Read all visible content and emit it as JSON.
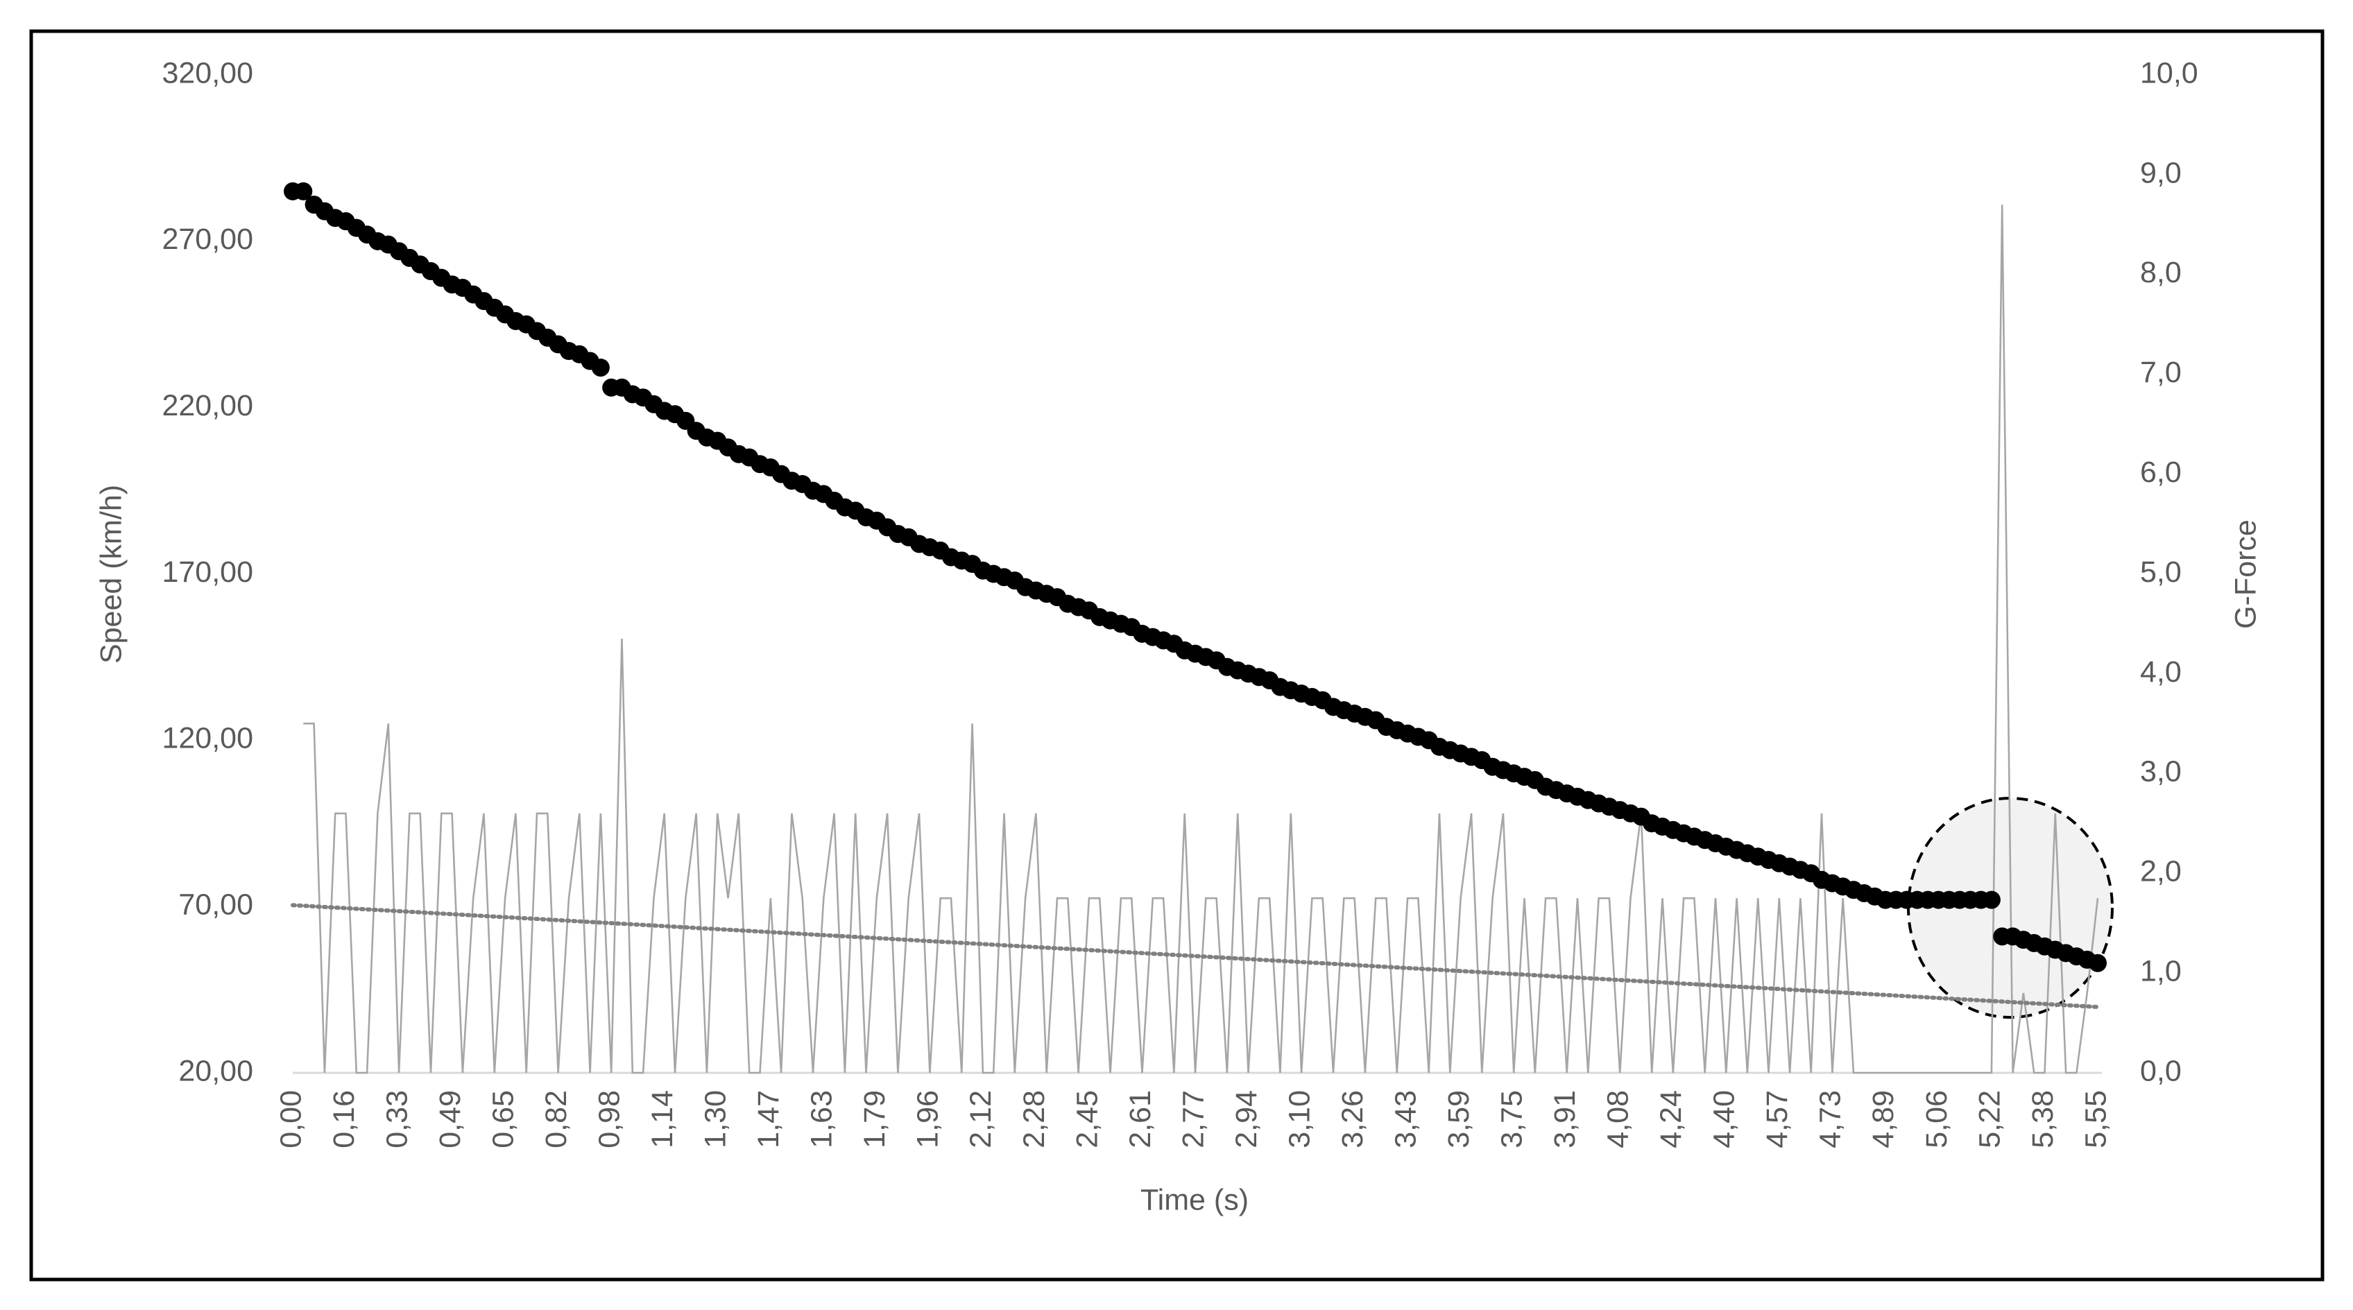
{
  "chart_data": {
    "type": "line",
    "x_label": "Time (s)",
    "y_label": "Speed (km/h)",
    "y2_label": "G-Force",
    "categories": [
      "0,00",
      null,
      null,
      null,
      null,
      "0,16",
      null,
      null,
      null,
      null,
      "0,33",
      null,
      null,
      null,
      null,
      "0,49",
      null,
      null,
      null,
      null,
      "0,65",
      null,
      null,
      null,
      null,
      "0,82",
      null,
      null,
      null,
      null,
      "0,98",
      null,
      null,
      null,
      null,
      "1,14",
      null,
      null,
      null,
      null,
      "1,30",
      null,
      null,
      null,
      null,
      "1,47",
      null,
      null,
      null,
      null,
      "1,63",
      null,
      null,
      null,
      null,
      "1,79",
      null,
      null,
      null,
      null,
      "1,96",
      null,
      null,
      null,
      null,
      "2,12",
      null,
      null,
      null,
      null,
      "2,28",
      null,
      null,
      null,
      null,
      "2,45",
      null,
      null,
      null,
      null,
      "2,61",
      null,
      null,
      null,
      null,
      "2,77",
      null,
      null,
      null,
      null,
      "2,94",
      null,
      null,
      null,
      null,
      "3,10",
      null,
      null,
      null,
      null,
      "3,26",
      null,
      null,
      null,
      null,
      "3,43",
      null,
      null,
      null,
      null,
      "3,59",
      null,
      null,
      null,
      null,
      "3,75",
      null,
      null,
      null,
      null,
      "3,91",
      null,
      null,
      null,
      null,
      "4,08",
      null,
      null,
      null,
      null,
      "4,24",
      null,
      null,
      null,
      null,
      "4,40",
      null,
      null,
      null,
      null,
      "4,57",
      null,
      null,
      null,
      null,
      "4,73",
      null,
      null,
      null,
      null,
      "4,89",
      null,
      null,
      null,
      null,
      "5,06",
      null,
      null,
      null,
      null,
      "5,22",
      null,
      null,
      null,
      null,
      "5,38",
      null,
      null,
      null,
      null,
      "5,55"
    ],
    "series": [
      {
        "color": "#000000",
        "marker": "circle",
        "axis": "y",
        "values": [
          285,
          285,
          281,
          279,
          277,
          276,
          274,
          272,
          270,
          269,
          267,
          265,
          263,
          261,
          259,
          257,
          256,
          254,
          252,
          250,
          248,
          246,
          245,
          243,
          241,
          239,
          237,
          236,
          234,
          232,
          226,
          226,
          224,
          223,
          221,
          219,
          218,
          216,
          213,
          211,
          210,
          208,
          206,
          205,
          203,
          202,
          200,
          198,
          197,
          195,
          194,
          192,
          190,
          189,
          187,
          186,
          184,
          182,
          181,
          179,
          178,
          177,
          175,
          174,
          173,
          171,
          170,
          169,
          168,
          166,
          165,
          164,
          163,
          161,
          160,
          159,
          157,
          156,
          155,
          154,
          152,
          151,
          150,
          149,
          147,
          146,
          145,
          144,
          142,
          141,
          140,
          139,
          138,
          136,
          135,
          134,
          133,
          132,
          130,
          129,
          128,
          127,
          126,
          124,
          123,
          122,
          121,
          120,
          118,
          117,
          116,
          115,
          114,
          112,
          111,
          110,
          109,
          108,
          106,
          105,
          104,
          103,
          102,
          101,
          100,
          99,
          98,
          97,
          95,
          94,
          93,
          92,
          91,
          90,
          89,
          88,
          87,
          86,
          85,
          84,
          83,
          82,
          81,
          80,
          78,
          77,
          76,
          75,
          74,
          73,
          72,
          72,
          72,
          72,
          72,
          72,
          72,
          72,
          72,
          72,
          72,
          61,
          61,
          60,
          59,
          58,
          57,
          56,
          55,
          54,
          53
        ]
      },
      {
        "color": "#a6a6a6",
        "axis": "y2",
        "values": [
          null,
          3.5,
          3.5,
          0,
          2.6,
          2.6,
          0,
          0,
          2.6,
          3.5,
          0,
          2.6,
          2.6,
          0,
          2.6,
          2.6,
          0,
          1.75,
          2.6,
          0,
          1.75,
          2.6,
          0,
          2.6,
          2.6,
          0,
          1.75,
          2.6,
          0,
          2.6,
          0,
          4.35,
          0,
          0,
          1.75,
          2.6,
          0,
          1.75,
          2.6,
          0,
          2.6,
          1.75,
          2.6,
          0,
          0,
          1.75,
          0,
          2.6,
          1.75,
          0,
          1.75,
          2.6,
          0,
          2.6,
          0,
          1.75,
          2.6,
          0,
          1.75,
          2.6,
          0,
          1.75,
          1.75,
          0,
          3.5,
          0,
          0,
          2.6,
          0,
          1.75,
          2.6,
          0,
          1.75,
          1.75,
          0,
          1.75,
          1.75,
          0,
          1.75,
          1.75,
          0,
          1.75,
          1.75,
          0,
          2.6,
          0,
          1.75,
          1.75,
          0,
          2.6,
          0,
          1.75,
          1.75,
          0,
          2.6,
          0,
          1.75,
          1.75,
          0,
          1.75,
          1.75,
          0,
          1.75,
          1.75,
          0,
          1.75,
          1.75,
          0,
          2.6,
          0,
          1.75,
          2.6,
          0,
          1.75,
          2.6,
          0,
          1.75,
          0,
          1.75,
          1.75,
          0,
          1.75,
          0,
          1.75,
          1.75,
          0,
          1.75,
          2.6,
          0,
          1.75,
          0,
          1.75,
          1.75,
          0,
          1.75,
          0,
          1.75,
          0,
          1.75,
          0,
          1.75,
          0,
          1.75,
          0,
          2.6,
          0,
          1.75,
          0,
          0,
          0,
          0,
          0,
          0,
          0,
          0,
          0,
          0,
          0,
          0,
          0,
          0,
          8.7,
          0,
          0.8,
          0,
          0,
          2.6,
          0,
          0,
          0.8,
          1.75
        ]
      }
    ],
    "trendline": {
      "axis": "y2",
      "color": "#7f7f7f",
      "start": 1.68,
      "end": 0.66
    },
    "ylim": [
      20,
      320
    ],
    "yticks": [
      {
        "value": 20,
        "label": "20,00"
      },
      {
        "value": 70,
        "label": "70,00"
      },
      {
        "value": 120,
        "label": "120,00"
      },
      {
        "value": 170,
        "label": "170,00"
      },
      {
        "value": 220,
        "label": "220,00"
      },
      {
        "value": 270,
        "label": "270,00"
      },
      {
        "value": 320,
        "label": "320,00"
      }
    ],
    "y2lim": [
      0,
      10
    ],
    "y2ticks": [
      {
        "value": 0,
        "label": "0,0"
      },
      {
        "value": 1,
        "label": "1,0"
      },
      {
        "value": 2,
        "label": "2,0"
      },
      {
        "value": 3,
        "label": "3,0"
      },
      {
        "value": 4,
        "label": "4,0"
      },
      {
        "value": 5,
        "label": "5,0"
      },
      {
        "value": 6,
        "label": "6,0"
      },
      {
        "value": 7,
        "label": "7,0"
      },
      {
        "value": 8,
        "label": "8,0"
      },
      {
        "value": 9,
        "label": "9,0"
      },
      {
        "value": 10,
        "label": "10,0"
      }
    ],
    "grid": false
  }
}
